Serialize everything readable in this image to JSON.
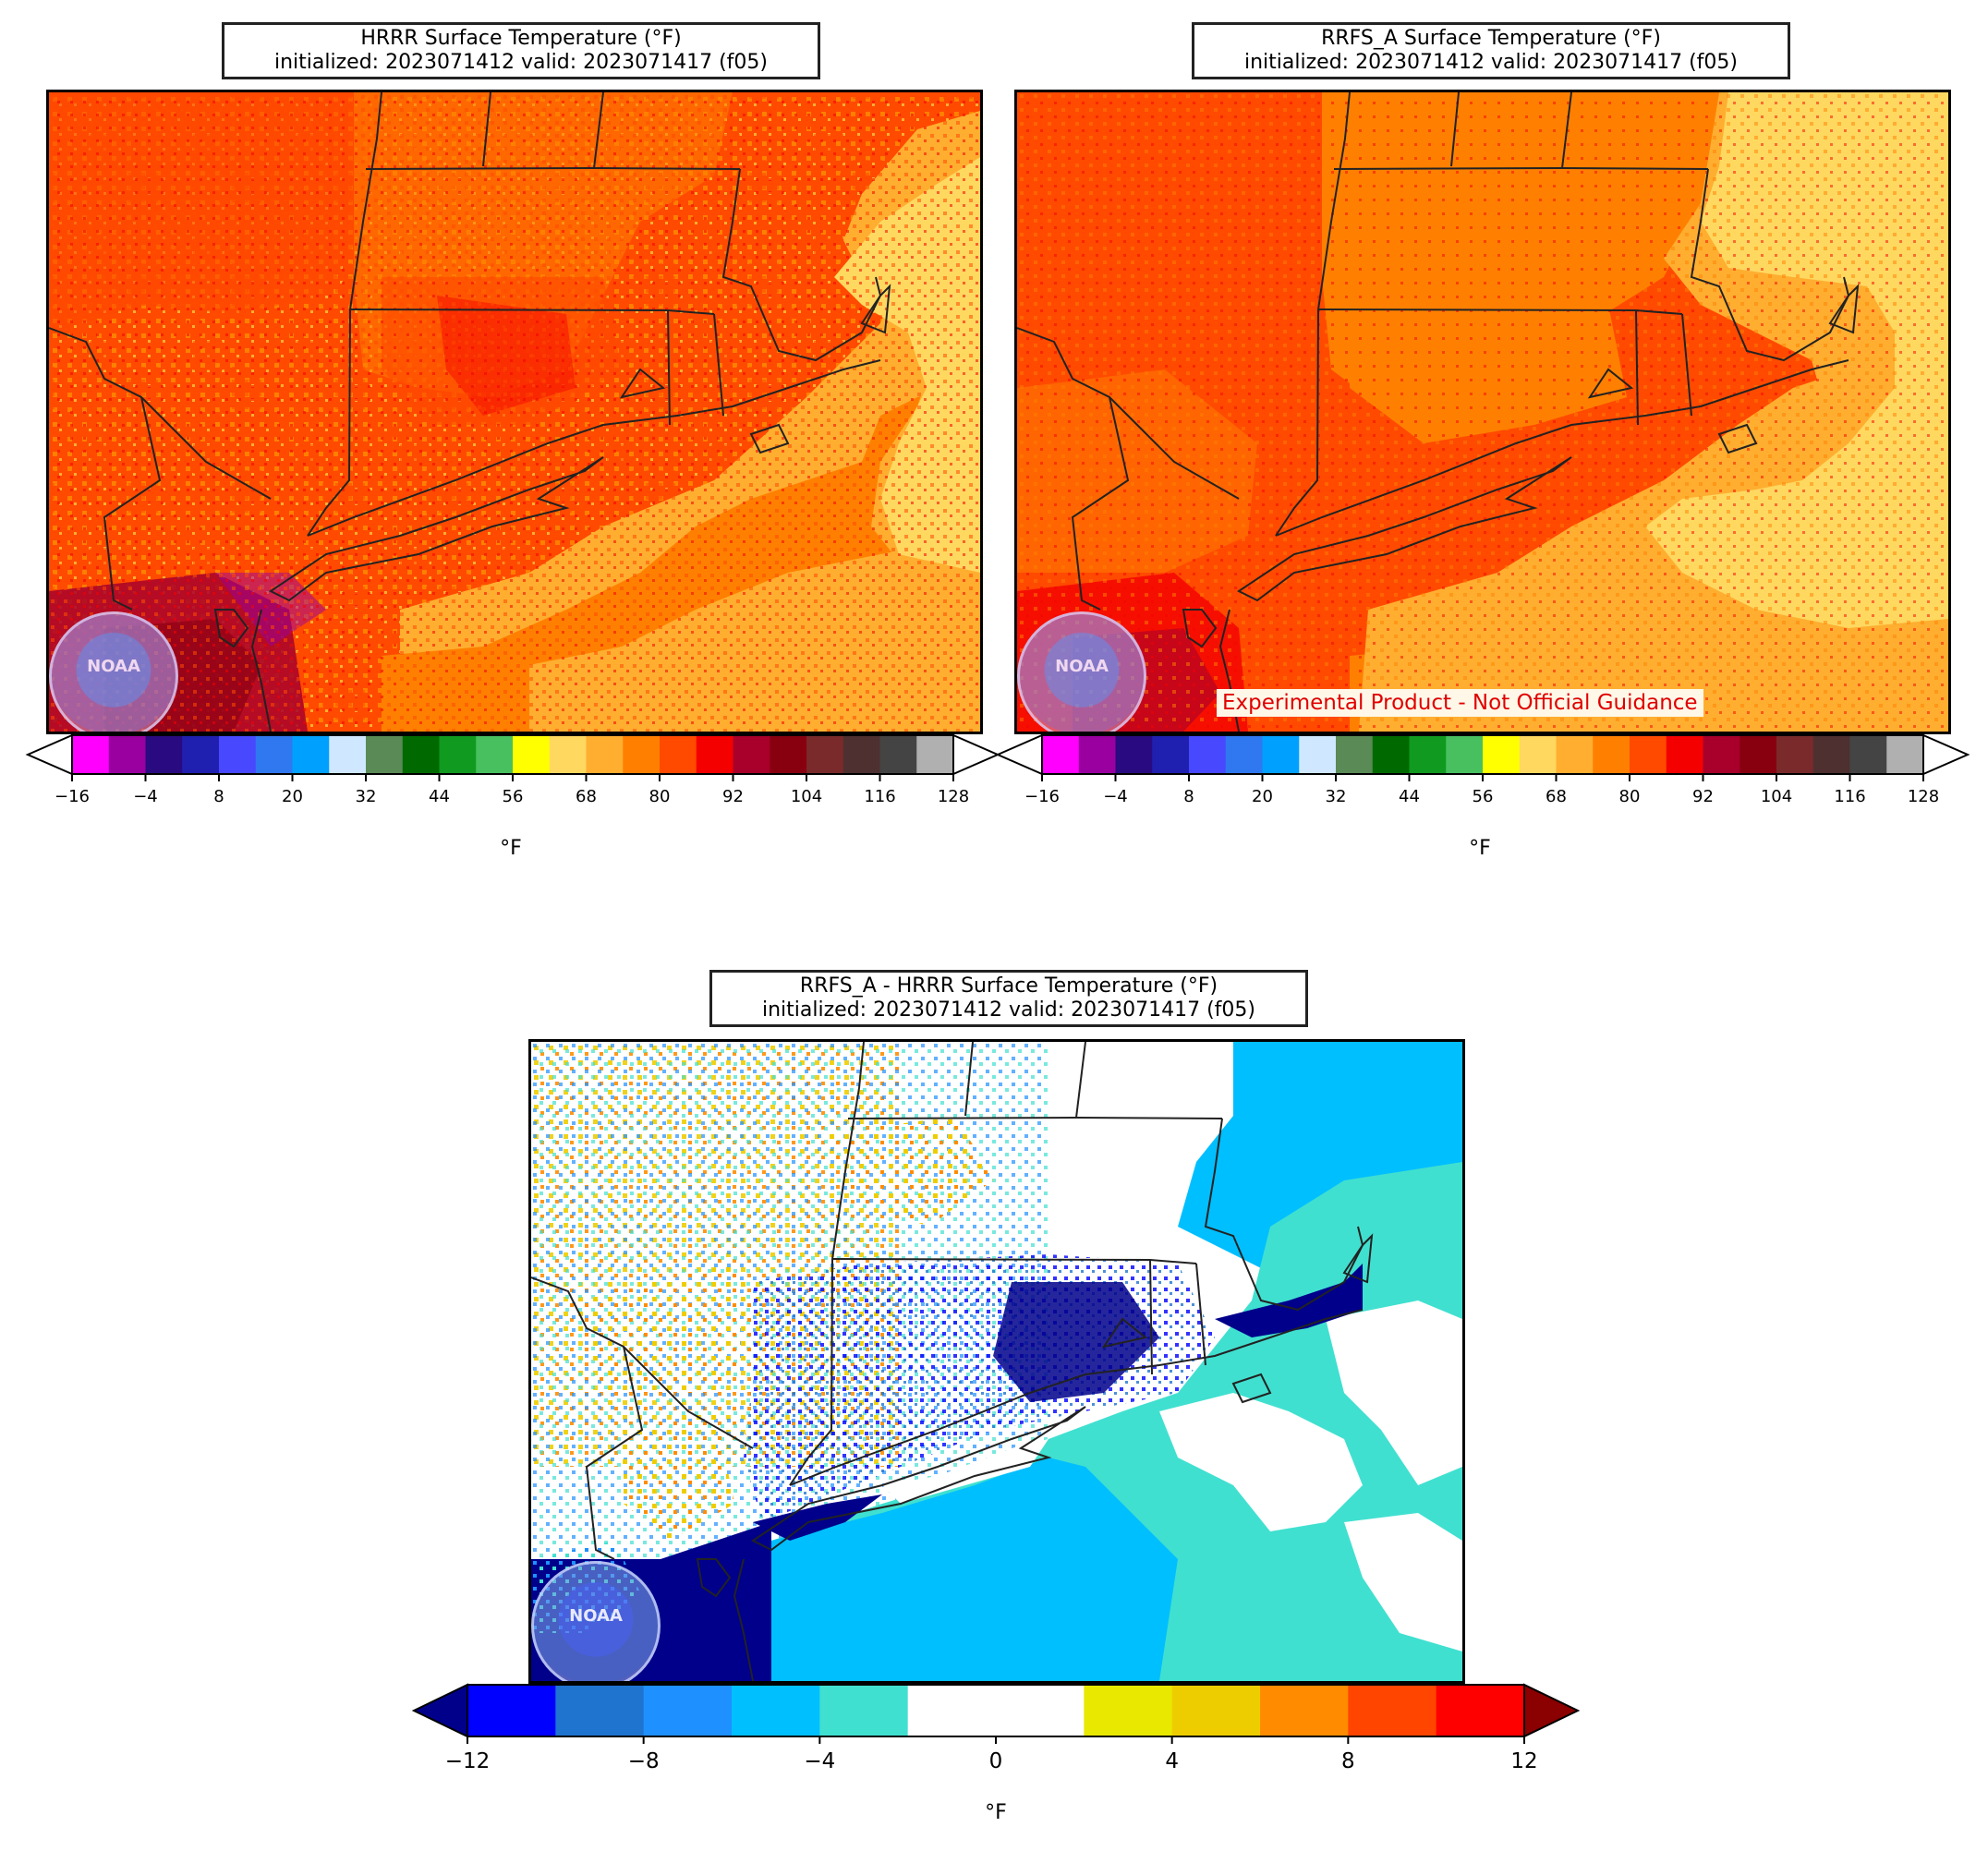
{
  "panels": {
    "hrrr": {
      "title_line1": "HRRR Surface Temperature (°F)",
      "title_line2": "initialized: 2023071412 valid: 2023071417 (f05)"
    },
    "rrfs": {
      "title_line1": "RRFS_A Surface Temperature (°F)",
      "title_line2": "initialized: 2023071412 valid: 2023071417 (f05)",
      "disclaimer": "Experimental Product - Not Official Guidance"
    },
    "diff": {
      "title_line1": "RRFS_A - HRRR Surface Temperature (°F)",
      "title_line2": "initialized: 2023071412 valid: 2023071417 (f05)"
    }
  },
  "temp_colorbar": {
    "unit": "°F",
    "ticks": [
      "−16",
      "−4",
      "8",
      "20",
      "32",
      "44",
      "56",
      "68",
      "80",
      "92",
      "104",
      "116",
      "128"
    ],
    "colors": [
      "#ff00ff",
      "#9a00a0",
      "#2a0a80",
      "#2020b0",
      "#4848ff",
      "#2f78f0",
      "#00a0ff",
      "#cfe8ff",
      "#5a8a55",
      "#006a00",
      "#109a20",
      "#48c060",
      "#ffff00",
      "#ffd860",
      "#ffae30",
      "#ff8000",
      "#ff4a00",
      "#f40000",
      "#a8002a",
      "#880010",
      "#7a2a2a",
      "#4e3030",
      "#444444",
      "#b0b0b0"
    ]
  },
  "diff_colorbar": {
    "unit": "°F",
    "ticks": [
      "−12",
      "−8",
      "−4",
      "0",
      "4",
      "8",
      "12"
    ],
    "colors": [
      "#0000ff",
      "#1f74d0",
      "#1e90ff",
      "#00bfff",
      "#40e0d0",
      "#ffffff",
      "#ffffff",
      "#e8e800",
      "#eecd00",
      "#ff8c00",
      "#ff4500",
      "#ff0000"
    ],
    "under_color": "#00008b",
    "over_color": "#8b0000"
  },
  "logo": {
    "text": "NOAA",
    "icon": "noaa-logo-icon"
  }
}
